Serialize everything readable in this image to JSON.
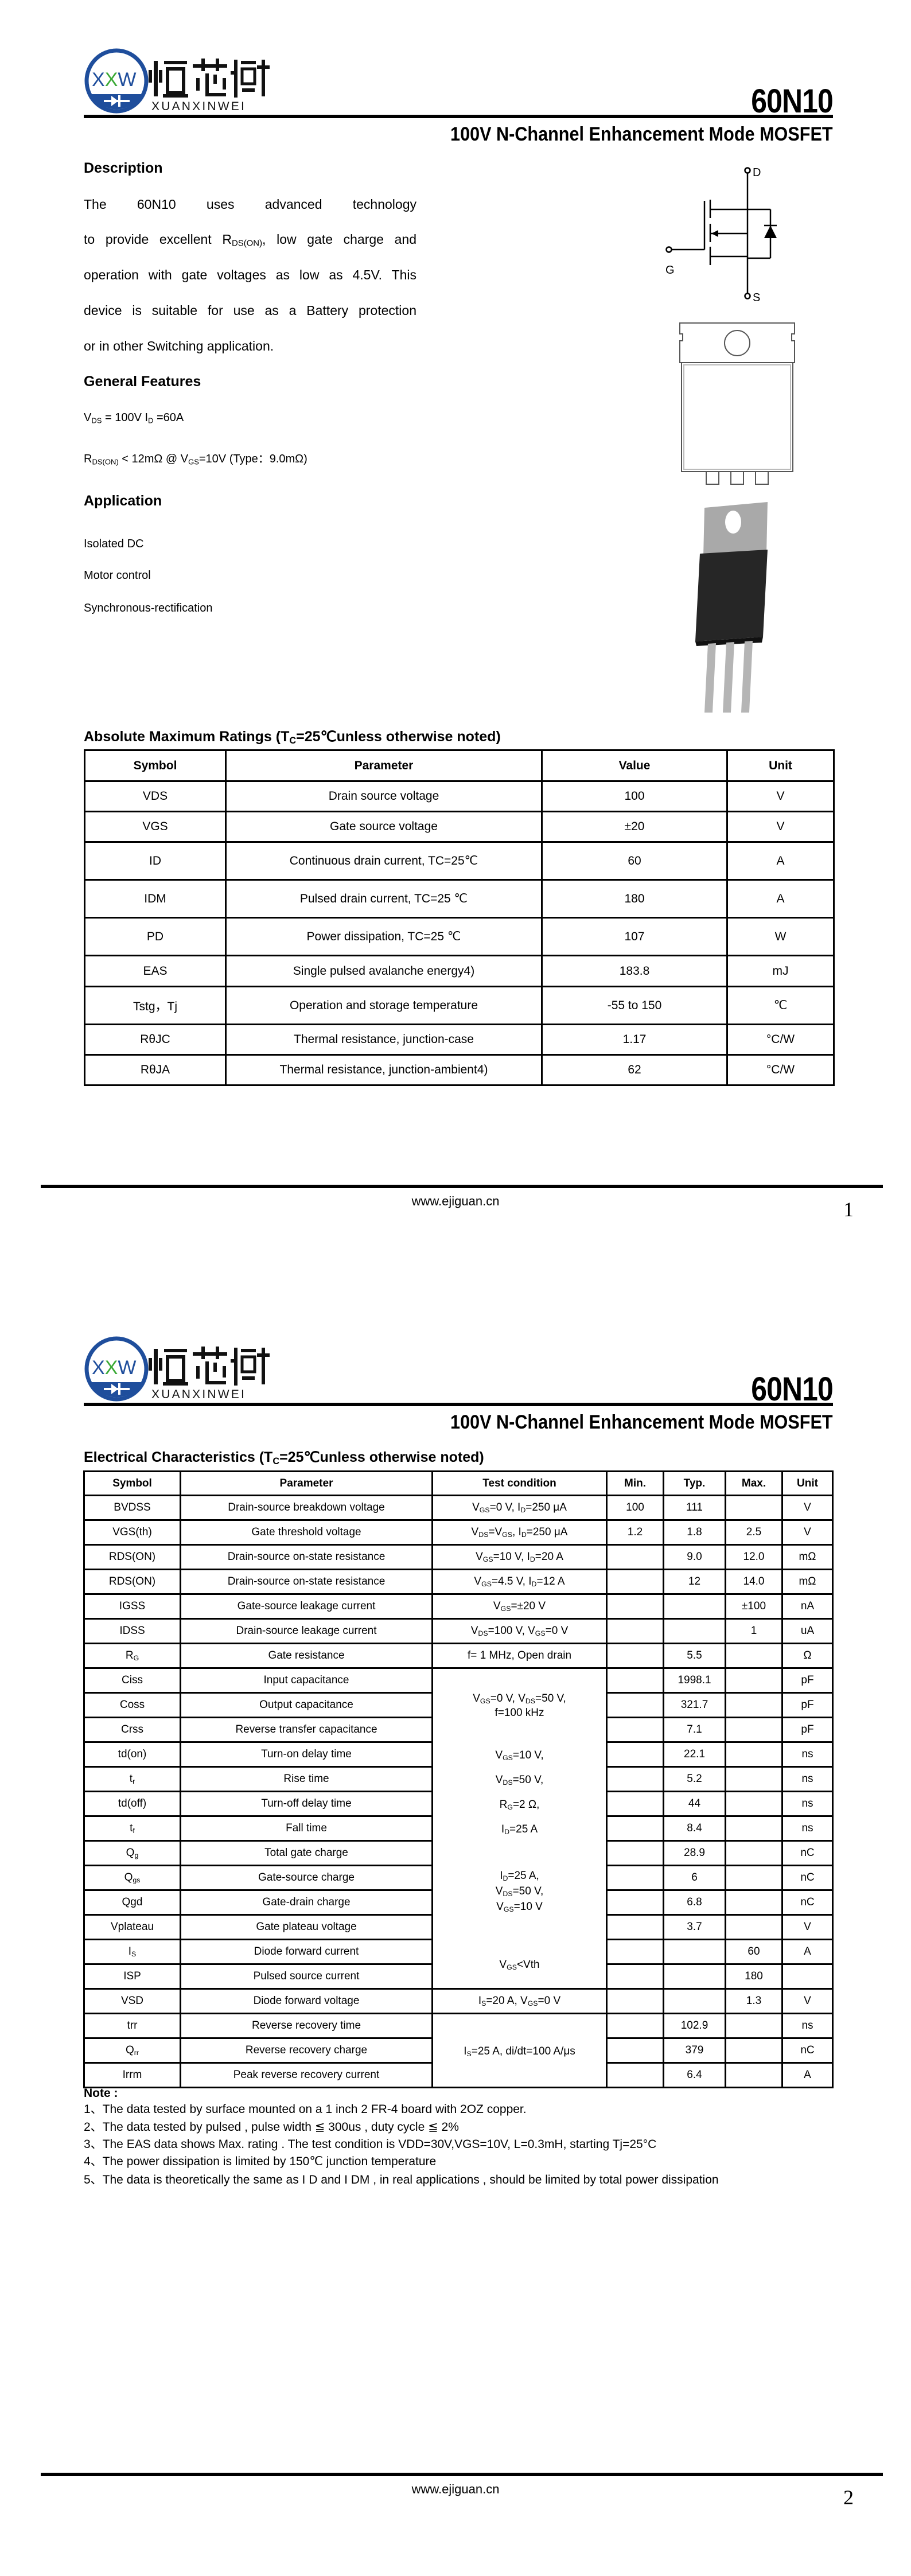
{
  "brand": {
    "logo_text": "XXW",
    "name_cn": "烜芯微",
    "name_en": "XUANXINWEI",
    "color_blue": "#1f4e9c",
    "color_green": "#3aa935"
  },
  "header": {
    "part_number": "60N10",
    "subtitle": "100V N-Channel Enhancement Mode MOSFET"
  },
  "page1": {
    "description": {
      "heading": "Description",
      "lines": [
        "The        60N10     uses advanced  technology",
        "to provide excellent RDS(ON), low gate charge and",
        "operation with gate voltages as low as 4.5V. This",
        "device is suitable for use as a Battery protection",
        "or in other Switching application."
      ]
    },
    "features": {
      "heading": "General Features",
      "items": [
        "VDS = 100V  ID =60A",
        "RDS(ON) < 12mΩ @ VGS=10V (Type：9.0mΩ)"
      ]
    },
    "application": {
      "heading": "Application",
      "items": [
        "Isolated DC",
        "Motor control",
        "Synchronous-rectification"
      ]
    },
    "symbol_labels": {
      "drain": "D",
      "gate": "G",
      "source": "S"
    },
    "amr": {
      "heading": "Absolute Maximum Ratings (TC=25℃unless otherwise noted)",
      "columns": [
        "Symbol",
        "Parameter",
        "Value",
        "Unit"
      ],
      "rows": [
        [
          "VDS",
          "Drain source voltage",
          "100",
          "V"
        ],
        [
          "VGS",
          "Gate source voltage",
          "±20",
          "V"
        ],
        [
          "ID",
          "Continuous drain current, TC=25℃",
          "60",
          "A"
        ],
        [
          "IDM",
          "Pulsed drain current, TC=25 ℃",
          "180",
          "A"
        ],
        [
          "PD",
          "Power dissipation, TC=25 ℃",
          "107",
          "W"
        ],
        [
          "EAS",
          "Single pulsed avalanche energy4)",
          "183.8",
          "mJ"
        ],
        [
          "Tstg，Tj",
          "Operation and storage temperature",
          "-55 to 150",
          "℃"
        ],
        [
          "RθJC",
          "Thermal resistance, junction-case",
          "1.17",
          "°C/W"
        ],
        [
          "RθJA",
          "Thermal resistance, junction-ambient4)",
          "62",
          "°C/W"
        ]
      ]
    },
    "footer": {
      "url": "www.ejiguan.cn",
      "page": "1"
    }
  },
  "page2": {
    "ec": {
      "heading": "Electrical Characteristics (TC=25℃unless otherwise noted)",
      "columns": [
        "Symbol",
        "Parameter",
        "Test condition",
        "Min.",
        "Typ.",
        "Max.",
        "Unit"
      ],
      "rows": [
        {
          "sym": "BVDSS",
          "sub": "",
          "param": "Drain-source breakdown voltage",
          "cond": "VGS=0 V, ID=250 μA",
          "min": "100",
          "typ": "111",
          "max": "",
          "unit": "V"
        },
        {
          "sym": "VGS(th)",
          "sub": "",
          "param": "Gate threshold voltage",
          "cond": "VDS=VGS, ID=250 μA",
          "min": "1.2",
          "typ": "1.8",
          "max": "2.5",
          "unit": "V"
        },
        {
          "sym": "RDS(ON)",
          "sub": "",
          "param": "Drain-source on-state resistance",
          "cond": "VGS=10 V, ID=20 A",
          "min": "",
          "typ": "9.0",
          "max": "12.0",
          "unit": "mΩ"
        },
        {
          "sym": "RDS(ON)",
          "sub": "",
          "param": "Drain-source on-state resistance",
          "cond": "VGS=4.5 V, ID=12 A",
          "min": "",
          "typ": "12",
          "max": "14.0",
          "unit": "mΩ"
        },
        {
          "sym": "IGSS",
          "sub": "",
          "param": "Gate-source leakage current",
          "cond": "VGS=±20 V",
          "min": "",
          "typ": "",
          "max": "±100",
          "unit": "nA"
        },
        {
          "sym": "IDSS",
          "sub": "",
          "param": "Drain-source leakage current",
          "cond": "VDS=100 V, VGS=0 V",
          "min": "",
          "typ": "",
          "max": "1",
          "unit": "uA"
        },
        {
          "sym": "R",
          "sub": "G",
          "param": "Gate resistance",
          "cond": "f= 1 MHz,  Open drain",
          "min": "",
          "typ": "5.5",
          "max": "",
          "unit": "Ω"
        },
        {
          "sym": "Ciss",
          "sub": "",
          "param": "Input capacitance",
          "min": "",
          "typ": "1998.1",
          "max": "",
          "unit": "pF"
        },
        {
          "sym": "Coss",
          "sub": "",
          "param": "Output capacitance",
          "min": "",
          "typ": "321.7",
          "max": "",
          "unit": "pF"
        },
        {
          "sym": "Crss",
          "sub": "",
          "param": "Reverse transfer capacitance",
          "min": "",
          "typ": "7.1",
          "max": "",
          "unit": "pF"
        },
        {
          "sym": "td(on)",
          "sub": "",
          "param": "Turn-on delay time",
          "min": "",
          "typ": "22.1",
          "max": "",
          "unit": "ns"
        },
        {
          "sym": "t",
          "sub": "r",
          "param": "Rise time",
          "min": "",
          "typ": "5.2",
          "max": "",
          "unit": "ns"
        },
        {
          "sym": "td(off)",
          "sub": "",
          "param": "Turn-off delay time",
          "min": "",
          "typ": "44",
          "max": "",
          "unit": "ns"
        },
        {
          "sym": "t",
          "sub": "f",
          "param": "Fall time",
          "min": "",
          "typ": "8.4",
          "max": "",
          "unit": "ns"
        },
        {
          "sym": "Q",
          "sub": "g",
          "param": "Total gate charge",
          "min": "",
          "typ": "28.9",
          "max": "",
          "unit": "nC"
        },
        {
          "sym": "Q",
          "sub": "gs",
          "param": "Gate-source charge",
          "min": "",
          "typ": "6",
          "max": "",
          "unit": "nC"
        },
        {
          "sym": "Qgd",
          "sub": "",
          "param": "Gate-drain charge",
          "min": "",
          "typ": "6.8",
          "max": "",
          "unit": "nC"
        },
        {
          "sym": "Vplateau",
          "sub": "",
          "param": "Gate plateau voltage",
          "min": "",
          "typ": "3.7",
          "max": "",
          "unit": "V"
        },
        {
          "sym": "I",
          "sub": "S",
          "param": "Diode forward current",
          "min": "",
          "typ": "",
          "max": "60",
          "unit": "A"
        },
        {
          "sym": "ISP",
          "sub": "",
          "param": "Pulsed source current",
          "min": "",
          "typ": "",
          "max": "180",
          "unit": ""
        },
        {
          "sym": "VSD",
          "sub": "",
          "param": "Diode forward voltage",
          "cond": "IS=20 A, VGS=0 V",
          "min": "",
          "typ": "",
          "max": "1.3",
          "unit": "V"
        },
        {
          "sym": "trr",
          "sub": "",
          "param": "Reverse recovery time",
          "min": "",
          "typ": "102.9",
          "max": "",
          "unit": "ns"
        },
        {
          "sym": "Q",
          "sub": "rr",
          "param": "Reverse recovery charge",
          "min": "",
          "typ": "379",
          "max": "",
          "unit": "nC"
        },
        {
          "sym": "Irrm",
          "sub": "",
          "param": "Peak reverse recovery current",
          "min": "",
          "typ": "6.4",
          "max": "",
          "unit": "A"
        }
      ],
      "merged_conditions_a": [
        "VGS=0 V,  VDS=50 V,",
        "f=100 kHz",
        "VGS=10 V,",
        "VDS=50 V,",
        "RG=2 Ω,",
        "ID=25 A",
        "ID=25 A,",
        "VDS=50 V,",
        "VGS=10 V",
        "VGS<Vth"
      ],
      "merged_conditions_b": [
        "IS=25 A,  di/dt=100 A/μs"
      ]
    },
    "notes": {
      "heading": "Note :",
      "items": [
        "1、The data tested by surface mounted on a 1 inch 2  FR-4 board with 2OZ copper.",
        "2、The data tested by pulsed , pulse width ≦ 300us , duty cycle ≦ 2%",
        "3、The EAS data shows Max. rating . The test condition is VDD=30V,VGS=10V, L=0.3mH, starting Tj=25°C",
        "4、The power dissipation is limited by 150℃ junction temperature",
        "5、The data is theoretically the same as I D and I DM , in real applications , should be limited by total power dissipation"
      ]
    },
    "footer": {
      "url": "www.ejiguan.cn",
      "page": "2"
    }
  }
}
